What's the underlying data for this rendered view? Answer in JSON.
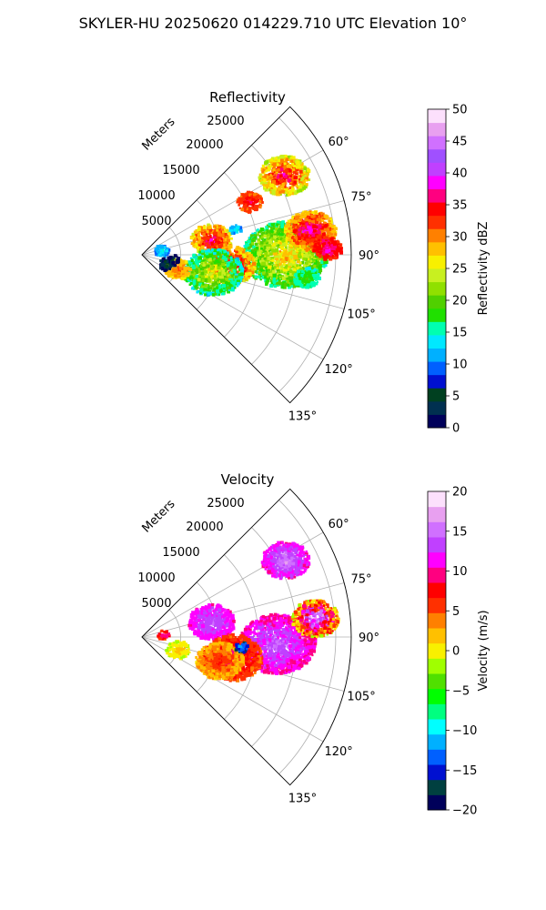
{
  "figure": {
    "suptitle": "SKYLER-HU  20250620  014229.710 UTC Elevation 10°"
  },
  "colors": {
    "reflectivity_cmap": [
      "#00005a",
      "#003050",
      "#004020",
      "#0010d0",
      "#0060ff",
      "#00b0ff",
      "#00e8ff",
      "#00ffb0",
      "#20e000",
      "#50d000",
      "#90e000",
      "#c8f020",
      "#f8f000",
      "#ffc000",
      "#ff8000",
      "#ff3000",
      "#ff0000",
      "#ff0080",
      "#ff00ff",
      "#c040ff",
      "#a050ff",
      "#d070ff",
      "#e8a0f0",
      "#fce0fc"
    ],
    "velocity_cmap": [
      "#00005a",
      "#004040",
      "#0010d0",
      "#0060ff",
      "#00b0ff",
      "#00ffff",
      "#00ff80",
      "#00ff00",
      "#50e000",
      "#a0ff00",
      "#f8f000",
      "#ffc000",
      "#ff8000",
      "#ff3000",
      "#ff0000",
      "#ff0080",
      "#ff00ff",
      "#c040ff",
      "#d070ff",
      "#e8a0f0",
      "#fce0fc"
    ]
  },
  "chart_data": [
    {
      "type": "heatmap",
      "projection": "polar-sector",
      "title": "Reflectivity",
      "radial_axis_label": "Meters",
      "radial_ticks": [
        5000,
        10000,
        15000,
        20000,
        25000
      ],
      "radial_tick_labels": [
        "5000",
        "10000",
        "15000",
        "20000",
        "25000"
      ],
      "rmax": 27000,
      "angle_range_deg": [
        45,
        135
      ],
      "angle_ticks": [
        60,
        75,
        90,
        105,
        120,
        135
      ],
      "angle_tick_labels": [
        "60°",
        "75°",
        "90°",
        "105°",
        "120°",
        "135°"
      ],
      "grid": true,
      "colorbar": {
        "label": "Reflectivity dBZ",
        "range": [
          0,
          50
        ],
        "ticks": [
          0,
          5,
          10,
          15,
          20,
          25,
          30,
          35,
          40,
          45,
          50
        ],
        "tick_labels": [
          "0",
          "5",
          "10",
          "15",
          "20",
          "25",
          "30",
          "35",
          "40",
          "45",
          "50"
        ]
      },
      "cells": [
        {
          "angle": 61,
          "range": 21000,
          "size": 3000,
          "value": 32,
          "spread": 7
        },
        {
          "angle": 64,
          "range": 15500,
          "size": 1500,
          "value": 34
        },
        {
          "angle": 78,
          "range": 9200,
          "size": 2400,
          "value": 33,
          "spread": 6
        },
        {
          "angle": 90,
          "range": 18500,
          "size": 5000,
          "value": 24,
          "spread": 7
        },
        {
          "angle": 97,
          "range": 11500,
          "size": 2900,
          "value": 33,
          "spread": 6
        },
        {
          "angle": 104,
          "range": 9500,
          "size": 3500,
          "value": 22,
          "spread": 7
        },
        {
          "angle": 82,
          "range": 22000,
          "size": 3000,
          "value": 34,
          "spread": 6
        },
        {
          "angle": 88,
          "range": 24000,
          "size": 1700,
          "value": 36
        },
        {
          "angle": 80,
          "range": 2600,
          "size": 900,
          "value": 13
        },
        {
          "angle": 112,
          "range": 5000,
          "size": 1500,
          "value": 30
        },
        {
          "angle": 110,
          "range": 3500,
          "size": 1000,
          "value": 4
        },
        {
          "angle": 98,
          "range": 4200,
          "size": 600,
          "value": 4
        },
        {
          "angle": 75,
          "range": 12500,
          "size": 700,
          "value": 14
        },
        {
          "angle": 98,
          "range": 21500,
          "size": 1500,
          "value": 18
        }
      ]
    },
    {
      "type": "heatmap",
      "projection": "polar-sector",
      "title": "Velocity",
      "radial_axis_label": "Meters",
      "radial_ticks": [
        5000,
        10000,
        15000,
        20000,
        25000
      ],
      "radial_tick_labels": [
        "5000",
        "10000",
        "15000",
        "20000",
        "25000"
      ],
      "rmax": 27000,
      "angle_range_deg": [
        45,
        135
      ],
      "angle_ticks": [
        60,
        75,
        90,
        105,
        120,
        135
      ],
      "angle_tick_labels": [
        "60°",
        "75°",
        "90°",
        "105°",
        "120°",
        "135°"
      ],
      "grid": true,
      "colorbar": {
        "label": "Velocity (m/s)",
        "range": [
          -20,
          20
        ],
        "ticks": [
          -20,
          -15,
          -10,
          -5,
          0,
          5,
          10,
          15,
          20
        ],
        "tick_labels": [
          "−20",
          "−15",
          "−10",
          "−5",
          "0",
          "5",
          "10",
          "15",
          "20"
        ]
      },
      "cells": [
        {
          "angle": 62,
          "range": 21000,
          "size": 2800,
          "value": 14,
          "spread": 3
        },
        {
          "angle": 78,
          "range": 9200,
          "size": 2700,
          "value": 13,
          "spread": 2
        },
        {
          "angle": 93,
          "range": 17500,
          "size": 4500,
          "value": 13,
          "spread": 3
        },
        {
          "angle": 103,
          "range": 12000,
          "size": 3500,
          "value": 8,
          "spread": 3
        },
        {
          "angle": 107,
          "range": 10500,
          "size": 2800,
          "value": 5,
          "spread": 3
        },
        {
          "angle": 84,
          "range": 22500,
          "size": 2800,
          "value": 12,
          "spread": 10
        },
        {
          "angle": 110,
          "range": 5000,
          "size": 1400,
          "value": 1,
          "spread": 2
        },
        {
          "angle": 85,
          "range": 2800,
          "size": 700,
          "value": 10,
          "spread": 4
        },
        {
          "angle": 96,
          "range": 13000,
          "size": 800,
          "value": -13
        }
      ]
    }
  ]
}
